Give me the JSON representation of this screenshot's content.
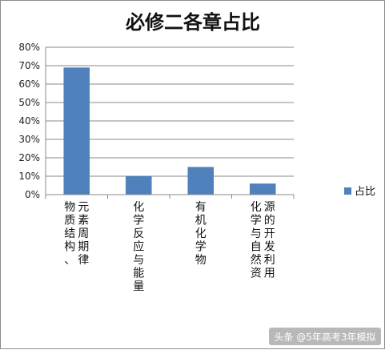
{
  "chart_data": {
    "type": "bar",
    "title": "必修二各章占比",
    "categories": [
      "物质结构、元素周期律",
      "化学反应与能量",
      "有机化学物",
      "化学与自然资源的开发利用"
    ],
    "series": [
      {
        "name": "占比",
        "values": [
          69,
          10,
          15,
          6
        ],
        "color": "#4f81bd"
      }
    ],
    "ylim": [
      0,
      80
    ],
    "yticks": [
      0,
      10,
      20,
      30,
      40,
      50,
      60,
      70,
      80
    ],
    "ytick_labels": [
      "0%",
      "10%",
      "20%",
      "30%",
      "40%",
      "50%",
      "60%",
      "70%",
      "80%"
    ],
    "grid": true,
    "legend": "right"
  },
  "watermark": {
    "text": "头条 @5年高考3年模拟"
  }
}
